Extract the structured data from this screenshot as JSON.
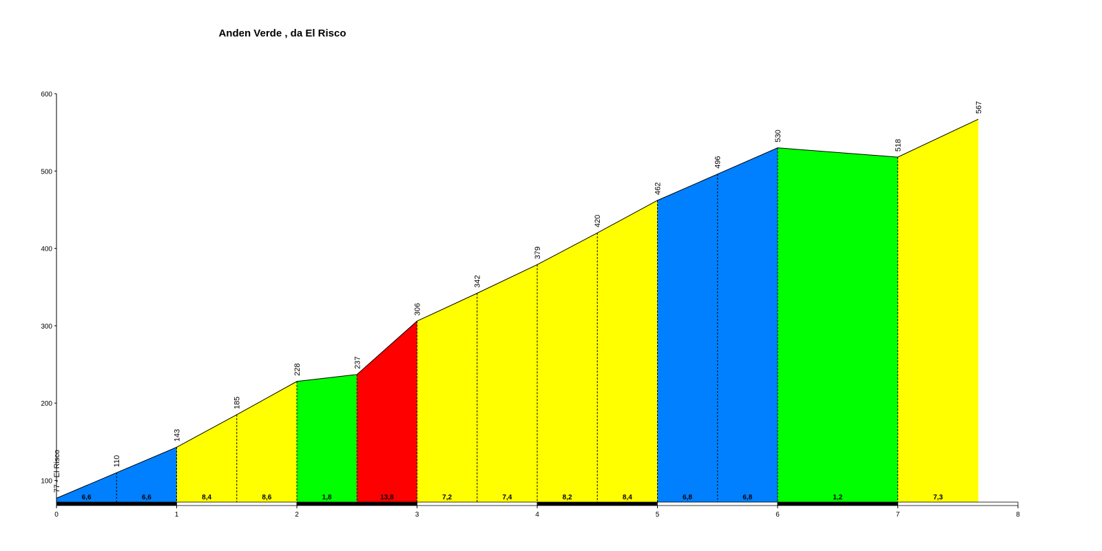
{
  "chart_data": {
    "type": "elevation-profile",
    "title": "Anden Verde , da El Risco",
    "x": [
      0,
      0.5,
      1,
      1.5,
      2,
      2.5,
      3,
      3.5,
      4,
      4.5,
      5,
      5.5,
      6,
      7,
      7.67
    ],
    "values": [
      77,
      110,
      143,
      185,
      228,
      237,
      306,
      342,
      379,
      420,
      462,
      496,
      530,
      518,
      567
    ],
    "value_labels": [
      "77 - El Risco",
      "110",
      "143",
      "185",
      "228",
      "237",
      "306",
      "342",
      "379",
      "420",
      "462",
      "496",
      "530",
      "518",
      "567"
    ],
    "gradient_labels": [
      "6,6",
      "6,6",
      "8,4",
      "8,6",
      "1,8",
      "13,8",
      "7,2",
      "7,4",
      "8,2",
      "8,4",
      "6,8",
      "6,8",
      "1,2",
      "7,3"
    ],
    "segment_colors": [
      "#0080ff",
      "#0080ff",
      "#ffff00",
      "#ffff00",
      "#00ff00",
      "#ff0000",
      "#ffff00",
      "#ffff00",
      "#ffff00",
      "#ffff00",
      "#0080ff",
      "#0080ff",
      "#00ff00",
      "#ffff00"
    ],
    "xlim": [
      0,
      8
    ],
    "xticks": [
      0,
      1,
      2,
      3,
      4,
      5,
      6,
      7,
      8
    ],
    "ylim": [
      72,
      600
    ],
    "yticks": [
      100,
      200,
      300,
      400,
      500,
      600
    ]
  }
}
